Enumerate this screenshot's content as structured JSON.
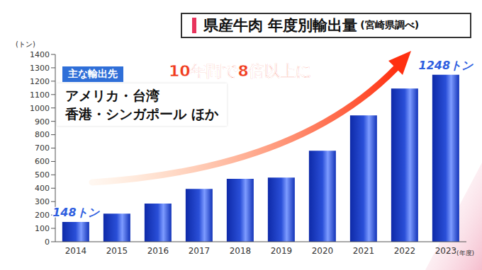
{
  "chart_data": {
    "type": "bar",
    "title": "県産牛肉 年度別輸出量",
    "subtitle": "(宮崎県調べ)",
    "y_label": "(トン)",
    "x_label": "(年度)",
    "annotation": "10年間で8倍以上に",
    "info_box": {
      "title": "主な輸出先",
      "lines": [
        "アメリカ・台湾",
        "香港・シンガポール ほか"
      ]
    },
    "categories": [
      "2014",
      "2015",
      "2016",
      "2017",
      "2018",
      "2019",
      "2020",
      "2021",
      "2022",
      "2023"
    ],
    "values": [
      148,
      210,
      285,
      395,
      470,
      480,
      680,
      945,
      1145,
      1248
    ],
    "value_labels": [
      "148トン",
      null,
      null,
      null,
      null,
      null,
      null,
      null,
      null,
      "1248トン"
    ],
    "data_labels": true,
    "color": "#2a4fd8",
    "ylim": [
      0,
      1400
    ],
    "yticks": [
      0,
      100,
      200,
      300,
      400,
      500,
      600,
      700,
      800,
      900,
      1000,
      1100,
      1200,
      1300,
      1400
    ],
    "grid": false
  }
}
